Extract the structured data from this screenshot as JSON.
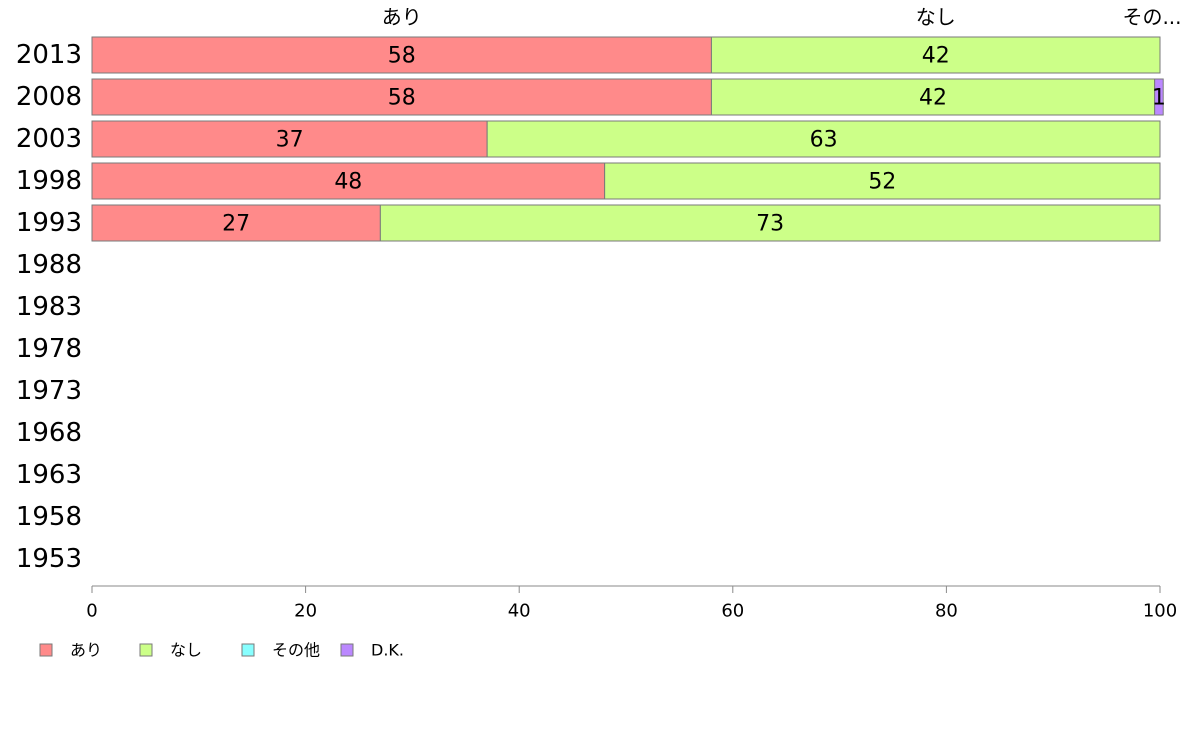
{
  "chart_data": {
    "type": "bar",
    "orientation": "horizontal",
    "stacked": true,
    "title": "",
    "xlabel": "",
    "ylabel": "",
    "xlim": [
      0,
      100
    ],
    "x_ticks": [
      0,
      20,
      40,
      60,
      80,
      100
    ],
    "categories": [
      "2013",
      "2008",
      "2003",
      "1998",
      "1993",
      "1988",
      "1983",
      "1978",
      "1973",
      "1968",
      "1963",
      "1958",
      "1953"
    ],
    "series": [
      {
        "name": "あり",
        "color": "#ff8a8a",
        "values": [
          58,
          58,
          37,
          48,
          27,
          null,
          null,
          null,
          null,
          null,
          null,
          null,
          null
        ]
      },
      {
        "name": "なし",
        "color": "#ccff88",
        "values": [
          42,
          41.5,
          63,
          52,
          73,
          null,
          null,
          null,
          null,
          null,
          null,
          null,
          null
        ]
      },
      {
        "name": "その他",
        "color": "#88ffff",
        "values": [
          0,
          0,
          0,
          0,
          0,
          null,
          null,
          null,
          null,
          null,
          null,
          null,
          null
        ]
      },
      {
        "name": "D.K.",
        "color": "#bb88ff",
        "values": [
          0,
          0.8,
          0,
          0,
          0,
          null,
          null,
          null,
          null,
          null,
          null,
          null,
          null
        ]
      }
    ],
    "value_labels": [
      [
        "58",
        "42",
        "",
        ""
      ],
      [
        "58",
        "42",
        "",
        "1"
      ],
      [
        "37",
        "63",
        "",
        ""
      ],
      [
        "48",
        "52",
        "",
        ""
      ],
      [
        "27",
        "73",
        "",
        ""
      ]
    ],
    "top_labels": [
      "あり",
      "なし",
      "その..."
    ],
    "legend": {
      "position": "bottom-left",
      "entries": [
        "あり",
        "なし",
        "その他",
        "D.K."
      ]
    },
    "grid": false
  }
}
